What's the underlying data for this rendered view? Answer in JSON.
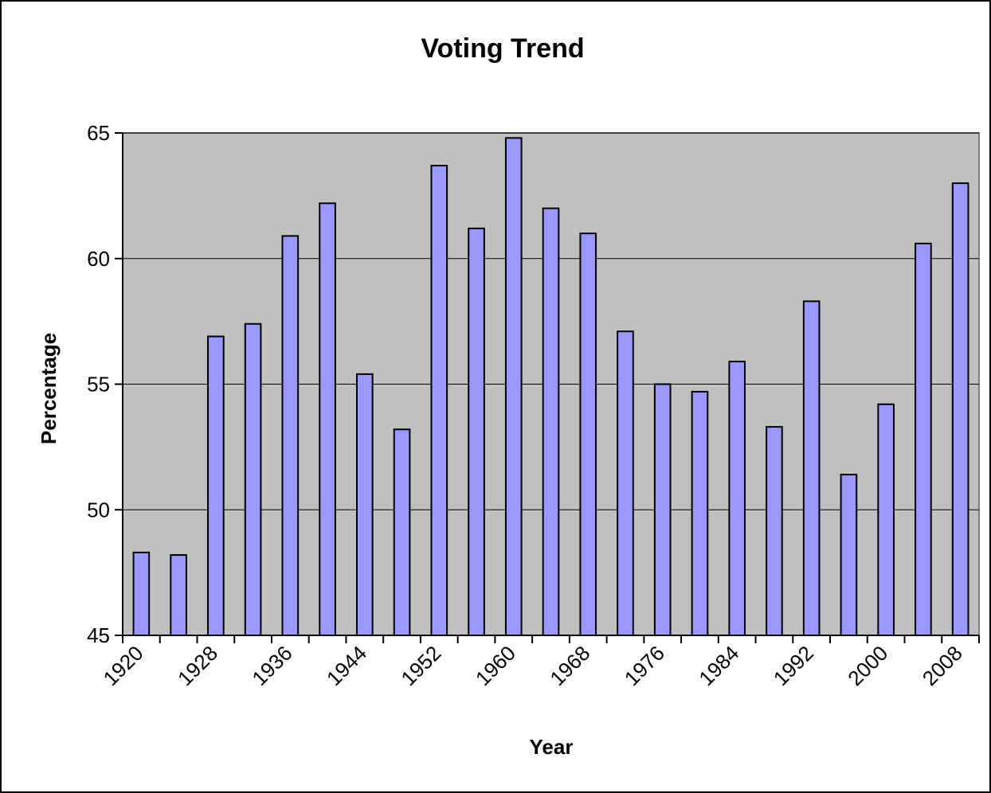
{
  "chart_data": {
    "type": "bar",
    "title": "Voting Trend",
    "xlabel": "Year",
    "ylabel": "Percentage",
    "categories": [
      1920,
      1924,
      1928,
      1932,
      1936,
      1940,
      1944,
      1948,
      1952,
      1956,
      1960,
      1964,
      1968,
      1972,
      1976,
      1980,
      1984,
      1988,
      1992,
      1996,
      2000,
      2004,
      2008
    ],
    "values": [
      48.3,
      48.2,
      56.9,
      57.4,
      60.9,
      62.2,
      55.4,
      53.2,
      63.7,
      61.2,
      64.8,
      62.0,
      61.0,
      57.1,
      55.0,
      54.7,
      55.9,
      53.3,
      58.3,
      51.4,
      54.2,
      60.6,
      63.0
    ],
    "x_tick_labels": [
      "1920",
      "1928",
      "1936",
      "1944",
      "1952",
      "1960",
      "1968",
      "1976",
      "1984",
      "1992",
      "2000",
      "2008"
    ],
    "y_tick_labels": [
      "45",
      "50",
      "55",
      "60",
      "65"
    ],
    "ylim": [
      45,
      65
    ],
    "y_ticks": [
      45,
      50,
      55,
      60,
      65
    ],
    "grid": true,
    "legend": "none",
    "colors": {
      "bar_fill": "#9999ff",
      "bar_stroke": "#000000",
      "plot_background": "#c0c0c0",
      "page_background": "#ffffff",
      "grid": "#000000"
    }
  }
}
